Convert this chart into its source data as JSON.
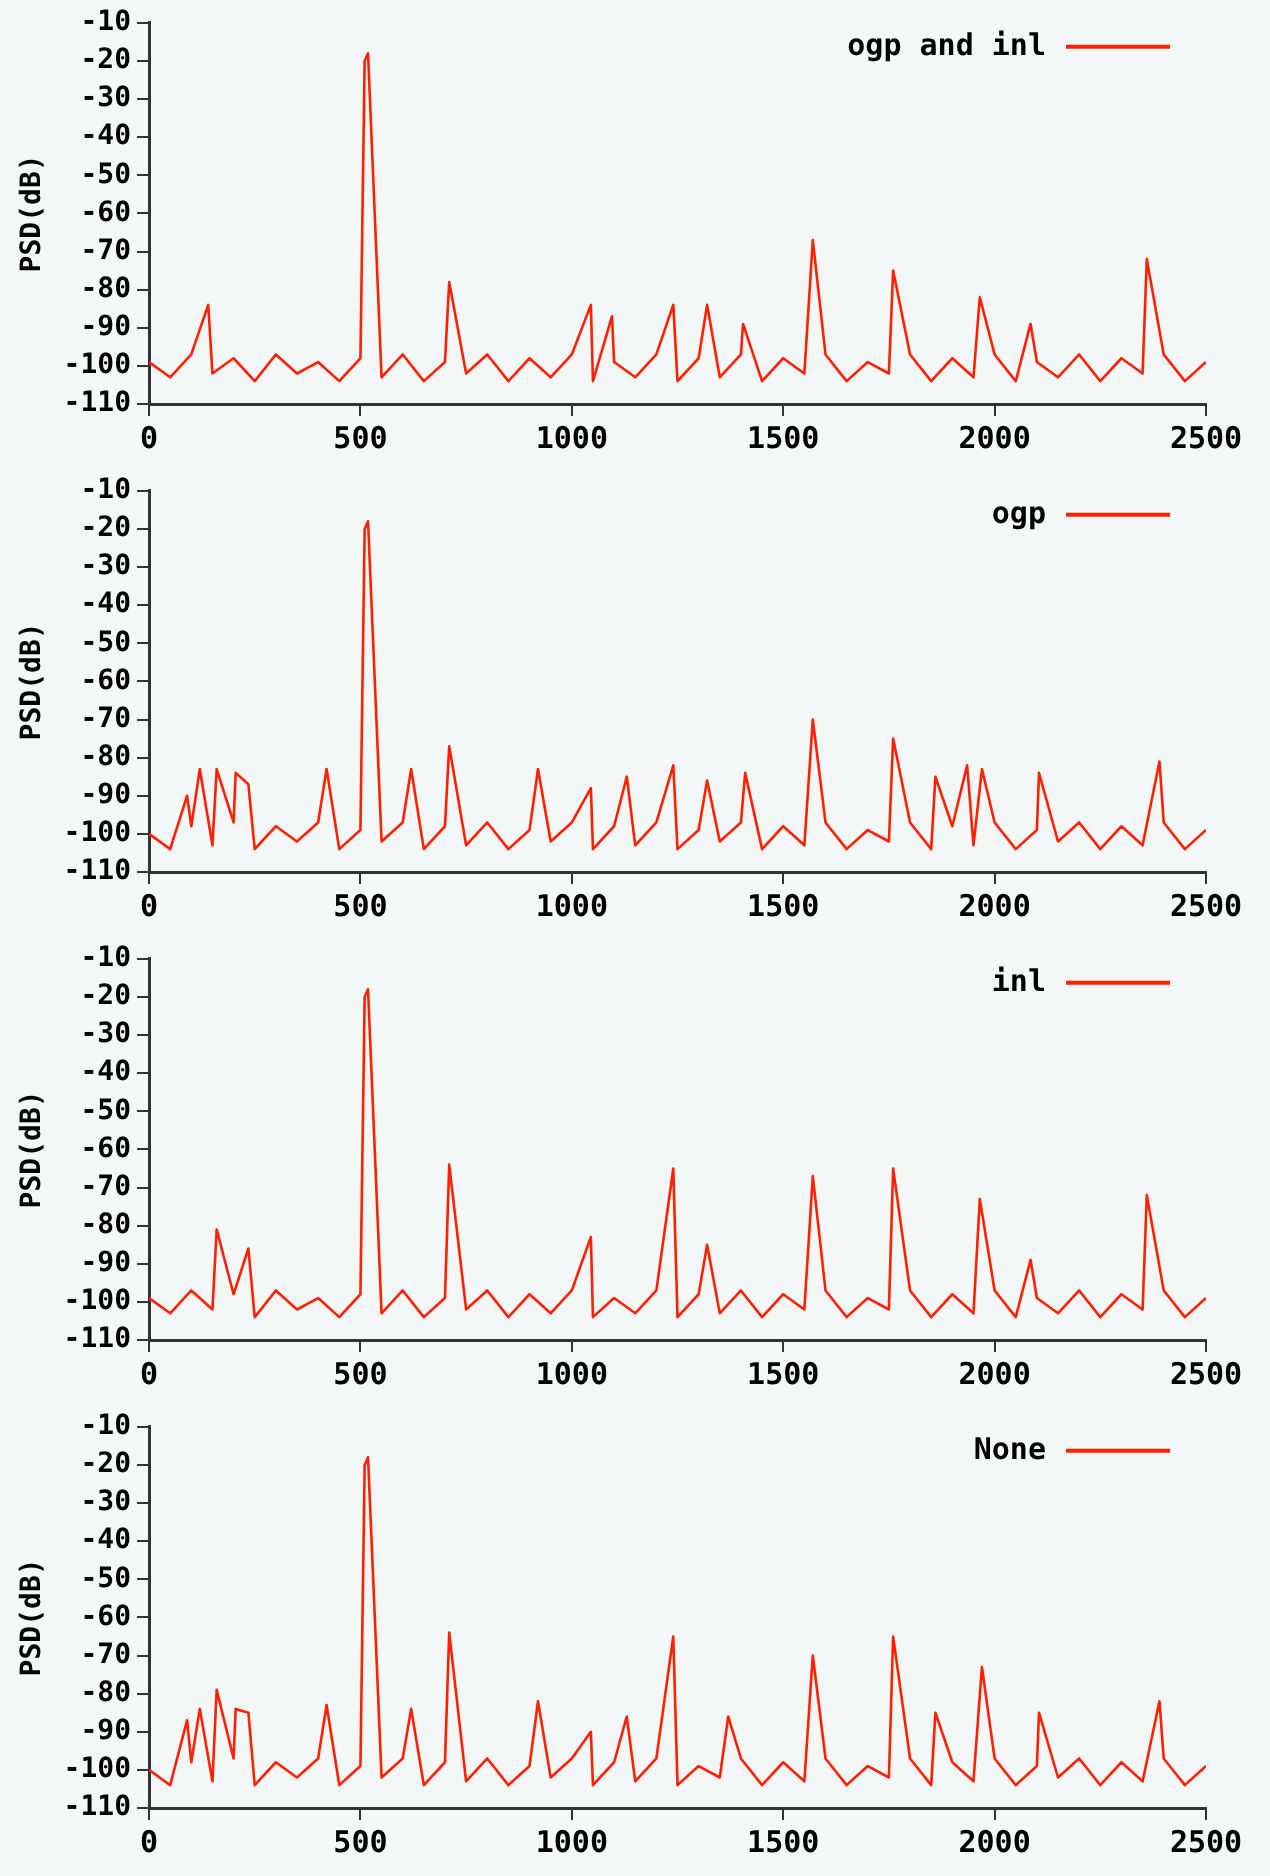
{
  "chart_data": [
    {
      "type": "line",
      "ylabel": "PSD(dB)",
      "xlim": [
        0,
        2500
      ],
      "xticks": [
        0,
        500,
        1000,
        1500,
        2000,
        2500
      ],
      "ylim": [
        -110,
        -10
      ],
      "yticks": [
        -110,
        -100,
        -90,
        -80,
        -70,
        -60,
        -50,
        -40,
        -30,
        -20,
        -10
      ],
      "grid": false,
      "legend": "top right",
      "marker": "none",
      "line_style": "solid",
      "series": [
        {
          "name": "ogp and inl",
          "color": "#ff2000",
          "x": [
            0,
            50,
            100,
            140,
            150,
            200,
            250,
            300,
            350,
            400,
            450,
            500,
            510,
            518,
            550,
            600,
            650,
            700,
            710,
            750,
            800,
            850,
            900,
            950,
            1000,
            1045,
            1050,
            1095,
            1100,
            1150,
            1200,
            1240,
            1250,
            1300,
            1320,
            1350,
            1400,
            1405,
            1450,
            1500,
            1550,
            1570,
            1600,
            1650,
            1700,
            1750,
            1760,
            1800,
            1850,
            1900,
            1950,
            1965,
            2000,
            2050,
            2085,
            2100,
            2150,
            2200,
            2250,
            2300,
            2350,
            2360,
            2400,
            2450,
            2500
          ],
          "values": [
            -99,
            -103,
            -97,
            -84,
            -102,
            -98,
            -104,
            -97,
            -102,
            -99,
            -104,
            -98,
            -20,
            -18,
            -103,
            -97,
            -104,
            -99,
            -78,
            -102,
            -97,
            -104,
            -98,
            -103,
            -97,
            -84,
            -104,
            -87,
            -99,
            -103,
            -97,
            -84,
            -104,
            -98,
            -84,
            -103,
            -97,
            -89,
            -104,
            -98,
            -102,
            -67,
            -97,
            -104,
            -99,
            -102,
            -75,
            -97,
            -104,
            -98,
            -103,
            -82,
            -97,
            -104,
            -89,
            -99,
            -103,
            -97,
            -104,
            -98,
            -102,
            -72,
            -97,
            -104,
            -99
          ]
        }
      ]
    },
    {
      "type": "line",
      "ylabel": "PSD(dB)",
      "xlim": [
        0,
        2500
      ],
      "xticks": [
        0,
        500,
        1000,
        1500,
        2000,
        2500
      ],
      "ylim": [
        -110,
        -10
      ],
      "yticks": [
        -110,
        -100,
        -90,
        -80,
        -70,
        -60,
        -50,
        -40,
        -30,
        -20,
        -10
      ],
      "grid": false,
      "legend": "top right",
      "marker": "none",
      "line_style": "solid",
      "series": [
        {
          "name": "ogp",
          "color": "#ff2000",
          "x": [
            0,
            50,
            90,
            100,
            120,
            150,
            160,
            200,
            205,
            235,
            250,
            300,
            350,
            400,
            420,
            450,
            500,
            510,
            518,
            550,
            600,
            620,
            650,
            700,
            710,
            750,
            800,
            850,
            900,
            920,
            950,
            1000,
            1045,
            1050,
            1100,
            1130,
            1150,
            1200,
            1240,
            1250,
            1300,
            1320,
            1350,
            1400,
            1410,
            1450,
            1500,
            1550,
            1570,
            1600,
            1650,
            1700,
            1750,
            1760,
            1800,
            1850,
            1860,
            1900,
            1935,
            1950,
            1970,
            2000,
            2050,
            2100,
            2105,
            2150,
            2200,
            2250,
            2300,
            2350,
            2390,
            2400,
            2450,
            2500
          ],
          "values": [
            -100,
            -104,
            -90,
            -98,
            -83,
            -103,
            -83,
            -97,
            -84,
            -87,
            -104,
            -98,
            -102,
            -97,
            -83,
            -104,
            -99,
            -20,
            -18,
            -102,
            -97,
            -83,
            -104,
            -98,
            -77,
            -103,
            -97,
            -104,
            -99,
            -83,
            -102,
            -97,
            -88,
            -104,
            -98,
            -85,
            -103,
            -97,
            -82,
            -104,
            -99,
            -86,
            -102,
            -97,
            -84,
            -104,
            -98,
            -103,
            -70,
            -97,
            -104,
            -99,
            -102,
            -75,
            -97,
            -104,
            -85,
            -98,
            -82,
            -103,
            -83,
            -97,
            -104,
            -99,
            -84,
            -102,
            -97,
            -104,
            -98,
            -103,
            -81,
            -97,
            -104,
            -99
          ]
        }
      ]
    },
    {
      "type": "line",
      "ylabel": "PSD(dB)",
      "xlim": [
        0,
        2500
      ],
      "xticks": [
        0,
        500,
        1000,
        1500,
        2000,
        2500
      ],
      "ylim": [
        -110,
        -10
      ],
      "yticks": [
        -110,
        -100,
        -90,
        -80,
        -70,
        -60,
        -50,
        -40,
        -30,
        -20,
        -10
      ],
      "grid": false,
      "legend": "top right",
      "marker": "none",
      "line_style": "solid",
      "series": [
        {
          "name": "inl",
          "color": "#ff2000",
          "x": [
            0,
            50,
            100,
            150,
            160,
            200,
            235,
            250,
            300,
            350,
            400,
            450,
            500,
            510,
            518,
            550,
            600,
            650,
            700,
            710,
            750,
            800,
            850,
            900,
            950,
            1000,
            1045,
            1050,
            1100,
            1150,
            1200,
            1240,
            1250,
            1300,
            1320,
            1350,
            1400,
            1450,
            1500,
            1550,
            1570,
            1600,
            1650,
            1700,
            1750,
            1760,
            1800,
            1850,
            1900,
            1950,
            1965,
            2000,
            2050,
            2085,
            2100,
            2150,
            2200,
            2250,
            2300,
            2350,
            2360,
            2400,
            2450,
            2500
          ],
          "values": [
            -99,
            -103,
            -97,
            -102,
            -81,
            -98,
            -86,
            -104,
            -97,
            -102,
            -99,
            -104,
            -98,
            -20,
            -18,
            -103,
            -97,
            -104,
            -99,
            -64,
            -102,
            -97,
            -104,
            -98,
            -103,
            -97,
            -83,
            -104,
            -99,
            -103,
            -97,
            -65,
            -104,
            -98,
            -85,
            -103,
            -97,
            -104,
            -98,
            -102,
            -67,
            -97,
            -104,
            -99,
            -102,
            -65,
            -97,
            -104,
            -98,
            -103,
            -73,
            -97,
            -104,
            -89,
            -99,
            -103,
            -97,
            -104,
            -98,
            -102,
            -72,
            -97,
            -104,
            -99
          ]
        }
      ]
    },
    {
      "type": "line",
      "ylabel": "PSD(dB)",
      "xlim": [
        0,
        2500
      ],
      "xticks": [
        0,
        500,
        1000,
        1500,
        2000,
        2500
      ],
      "ylim": [
        -110,
        -10
      ],
      "yticks": [
        -110,
        -100,
        -90,
        -80,
        -70,
        -60,
        -50,
        -40,
        -30,
        -20,
        -10
      ],
      "grid": false,
      "legend": "top right",
      "marker": "none",
      "line_style": "solid",
      "series": [
        {
          "name": "None",
          "color": "#ff2000",
          "x": [
            0,
            50,
            90,
            100,
            120,
            150,
            160,
            200,
            205,
            235,
            250,
            300,
            350,
            400,
            420,
            450,
            500,
            510,
            518,
            550,
            600,
            620,
            650,
            700,
            710,
            750,
            800,
            850,
            900,
            920,
            950,
            1000,
            1045,
            1050,
            1100,
            1130,
            1150,
            1200,
            1240,
            1250,
            1300,
            1350,
            1370,
            1400,
            1450,
            1500,
            1550,
            1570,
            1600,
            1650,
            1700,
            1750,
            1760,
            1800,
            1850,
            1860,
            1900,
            1950,
            1970,
            2000,
            2050,
            2100,
            2105,
            2150,
            2200,
            2250,
            2300,
            2350,
            2390,
            2400,
            2450,
            2500
          ],
          "values": [
            -100,
            -104,
            -87,
            -98,
            -84,
            -103,
            -79,
            -97,
            -84,
            -85,
            -104,
            -98,
            -102,
            -97,
            -83,
            -104,
            -99,
            -20,
            -18,
            -102,
            -97,
            -84,
            -104,
            -98,
            -64,
            -103,
            -97,
            -104,
            -99,
            -82,
            -102,
            -97,
            -90,
            -104,
            -98,
            -86,
            -103,
            -97,
            -65,
            -104,
            -99,
            -102,
            -86,
            -97,
            -104,
            -98,
            -103,
            -70,
            -97,
            -104,
            -99,
            -102,
            -65,
            -97,
            -104,
            -85,
            -98,
            -103,
            -73,
            -97,
            -104,
            -99,
            -85,
            -102,
            -97,
            -104,
            -98,
            -103,
            -82,
            -97,
            -104,
            -99
          ]
        }
      ]
    }
  ]
}
